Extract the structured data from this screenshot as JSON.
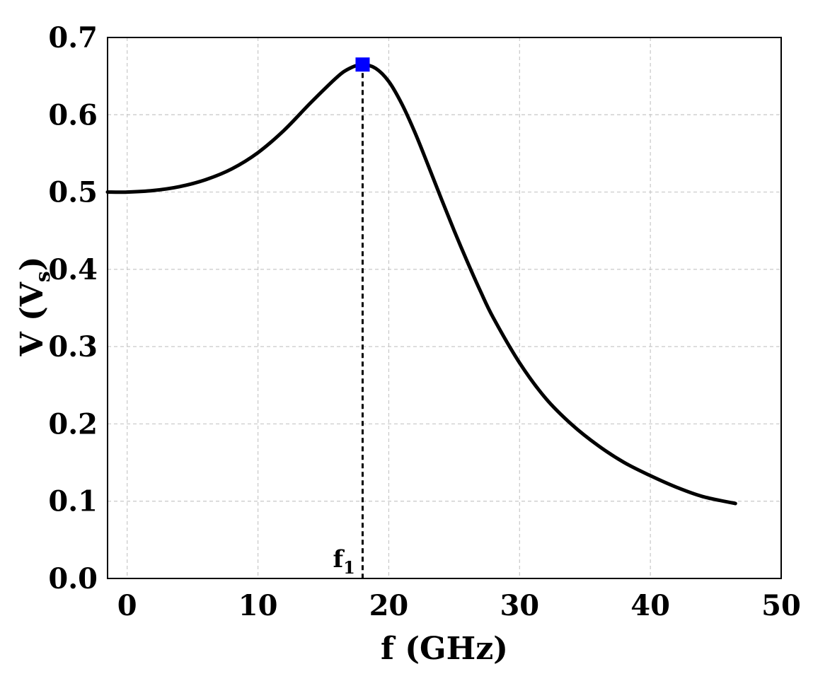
{
  "chart_data": {
    "type": "line",
    "title": "",
    "xlabel": "f (GHz)",
    "ylabel_main": "V (V",
    "ylabel_sub": "s",
    "ylabel_close": ")",
    "xlim": [
      -1.5,
      50
    ],
    "ylim": [
      0.0,
      0.7
    ],
    "xticks": [
      0,
      10,
      20,
      30,
      40,
      50
    ],
    "xtick_labels": [
      "0",
      "10",
      "20",
      "30",
      "40",
      "50"
    ],
    "yticks": [
      0.0,
      0.1,
      0.2,
      0.3,
      0.4,
      0.5,
      0.6,
      0.7
    ],
    "ytick_labels": [
      "0.0",
      "0.1",
      "0.2",
      "0.3",
      "0.4",
      "0.5",
      "0.6",
      "0.7"
    ],
    "grid": true,
    "series": [
      {
        "name": "V",
        "color": "#000000",
        "x": [
          -1.5,
          0,
          2,
          4,
          6,
          8,
          10,
          12,
          14,
          16,
          17,
          18,
          19,
          20,
          21,
          22,
          23,
          24,
          25,
          26,
          27,
          28,
          30,
          32,
          34,
          36,
          38,
          40,
          42,
          44,
          46.5
        ],
        "y": [
          0.5,
          0.5,
          0.502,
          0.507,
          0.516,
          0.53,
          0.551,
          0.58,
          0.615,
          0.648,
          0.66,
          0.665,
          0.66,
          0.643,
          0.614,
          0.577,
          0.535,
          0.492,
          0.45,
          0.41,
          0.372,
          0.337,
          0.279,
          0.233,
          0.199,
          0.172,
          0.15,
          0.133,
          0.118,
          0.106,
          0.097
        ]
      }
    ],
    "marker": {
      "x": 18,
      "y": 0.665,
      "color": "#0000ff",
      "shape": "square"
    },
    "vline": {
      "x": 18,
      "label_main": "f",
      "label_sub": "1"
    }
  }
}
